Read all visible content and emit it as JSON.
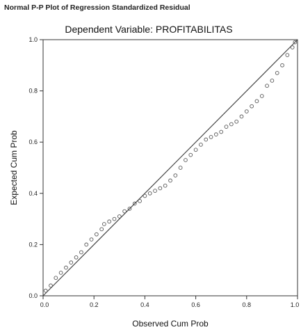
{
  "chart_data": {
    "type": "scatter",
    "title": "Normal P-P Plot of Regression Standardized Residual",
    "subtitle": "Dependent Variable: PROFITABILITAS",
    "xlabel": "Observed Cum Prob",
    "ylabel": "Expected Cum Prob",
    "xlim": [
      0,
      1
    ],
    "ylim": [
      0,
      1
    ],
    "grid": false,
    "x_ticks": [
      "0.0",
      "0.2",
      "0.4",
      "0.6",
      "0.8",
      "1.0"
    ],
    "y_ticks": [
      "0.0",
      "0.2",
      "0.4",
      "0.6",
      "0.8",
      "1.0"
    ],
    "reference_line": {
      "x": [
        0,
        1
      ],
      "y": [
        0,
        1
      ]
    },
    "points": [
      {
        "x": 0.01,
        "y": 0.02
      },
      {
        "x": 0.03,
        "y": 0.04
      },
      {
        "x": 0.05,
        "y": 0.07
      },
      {
        "x": 0.07,
        "y": 0.09
      },
      {
        "x": 0.09,
        "y": 0.11
      },
      {
        "x": 0.11,
        "y": 0.13
      },
      {
        "x": 0.13,
        "y": 0.15
      },
      {
        "x": 0.15,
        "y": 0.17
      },
      {
        "x": 0.17,
        "y": 0.2
      },
      {
        "x": 0.19,
        "y": 0.22
      },
      {
        "x": 0.21,
        "y": 0.24
      },
      {
        "x": 0.23,
        "y": 0.26
      },
      {
        "x": 0.24,
        "y": 0.28
      },
      {
        "x": 0.26,
        "y": 0.29
      },
      {
        "x": 0.28,
        "y": 0.3
      },
      {
        "x": 0.3,
        "y": 0.31
      },
      {
        "x": 0.32,
        "y": 0.33
      },
      {
        "x": 0.34,
        "y": 0.34
      },
      {
        "x": 0.36,
        "y": 0.36
      },
      {
        "x": 0.38,
        "y": 0.37
      },
      {
        "x": 0.4,
        "y": 0.39
      },
      {
        "x": 0.42,
        "y": 0.4
      },
      {
        "x": 0.44,
        "y": 0.41
      },
      {
        "x": 0.46,
        "y": 0.42
      },
      {
        "x": 0.48,
        "y": 0.43
      },
      {
        "x": 0.5,
        "y": 0.45
      },
      {
        "x": 0.52,
        "y": 0.47
      },
      {
        "x": 0.54,
        "y": 0.5
      },
      {
        "x": 0.56,
        "y": 0.53
      },
      {
        "x": 0.58,
        "y": 0.55
      },
      {
        "x": 0.6,
        "y": 0.57
      },
      {
        "x": 0.62,
        "y": 0.59
      },
      {
        "x": 0.64,
        "y": 0.61
      },
      {
        "x": 0.66,
        "y": 0.62
      },
      {
        "x": 0.68,
        "y": 0.63
      },
      {
        "x": 0.7,
        "y": 0.64
      },
      {
        "x": 0.72,
        "y": 0.66
      },
      {
        "x": 0.74,
        "y": 0.67
      },
      {
        "x": 0.76,
        "y": 0.68
      },
      {
        "x": 0.78,
        "y": 0.7
      },
      {
        "x": 0.8,
        "y": 0.72
      },
      {
        "x": 0.82,
        "y": 0.74
      },
      {
        "x": 0.84,
        "y": 0.76
      },
      {
        "x": 0.86,
        "y": 0.78
      },
      {
        "x": 0.88,
        "y": 0.82
      },
      {
        "x": 0.9,
        "y": 0.84
      },
      {
        "x": 0.92,
        "y": 0.87
      },
      {
        "x": 0.94,
        "y": 0.9
      },
      {
        "x": 0.96,
        "y": 0.94
      },
      {
        "x": 0.98,
        "y": 0.97
      },
      {
        "x": 0.99,
        "y": 0.99
      }
    ]
  }
}
